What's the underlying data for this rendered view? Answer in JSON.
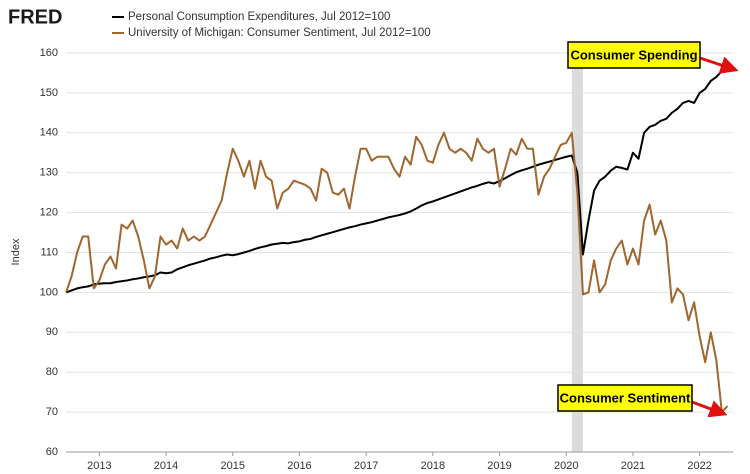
{
  "chart_data": {
    "type": "line",
    "logo": "FRED",
    "ylabel": "Index",
    "xlim": [
      2012.5,
      2022.5
    ],
    "xticks": [
      2013,
      2014,
      2015,
      2016,
      2017,
      2018,
      2019,
      2020,
      2021,
      2022
    ],
    "ylim": [
      60,
      160
    ],
    "yticks": [
      60,
      70,
      80,
      90,
      100,
      110,
      120,
      130,
      140,
      150,
      160
    ],
    "grid": true,
    "recessions": [
      {
        "start": 2020.083,
        "end": 2020.25
      }
    ],
    "annotations": [
      "Consumer Spending",
      "Consumer Sentiment"
    ],
    "x": [
      2012.5,
      2012.583,
      2012.667,
      2012.75,
      2012.833,
      2012.917,
      2013,
      2013.083,
      2013.167,
      2013.25,
      2013.333,
      2013.417,
      2013.5,
      2013.583,
      2013.667,
      2013.75,
      2013.833,
      2013.917,
      2014,
      2014.083,
      2014.167,
      2014.25,
      2014.333,
      2014.417,
      2014.5,
      2014.583,
      2014.667,
      2014.75,
      2014.833,
      2014.917,
      2015,
      2015.083,
      2015.167,
      2015.25,
      2015.333,
      2015.417,
      2015.5,
      2015.583,
      2015.667,
      2015.75,
      2015.833,
      2015.917,
      2016,
      2016.083,
      2016.167,
      2016.25,
      2016.333,
      2016.417,
      2016.5,
      2016.583,
      2016.667,
      2016.75,
      2016.833,
      2016.917,
      2017,
      2017.083,
      2017.167,
      2017.25,
      2017.333,
      2017.417,
      2017.5,
      2017.583,
      2017.667,
      2017.75,
      2017.833,
      2017.917,
      2018,
      2018.083,
      2018.167,
      2018.25,
      2018.333,
      2018.417,
      2018.5,
      2018.583,
      2018.667,
      2018.75,
      2018.833,
      2018.917,
      2019,
      2019.083,
      2019.167,
      2019.25,
      2019.333,
      2019.417,
      2019.5,
      2019.583,
      2019.667,
      2019.75,
      2019.833,
      2019.917,
      2020,
      2020.083,
      2020.167,
      2020.25,
      2020.333,
      2020.417,
      2020.5,
      2020.583,
      2020.667,
      2020.75,
      2020.833,
      2020.917,
      2021,
      2021.083,
      2021.167,
      2021.25,
      2021.333,
      2021.417,
      2021.5,
      2021.583,
      2021.667,
      2021.75,
      2021.833,
      2021.917,
      2022,
      2022.083,
      2022.167,
      2022.25,
      2022.333,
      2022.417
    ],
    "series": [
      {
        "name": "Personal Consumption Expenditures, Jul 2012=100",
        "color": "#000000",
        "values": [
          100,
          100.5,
          101,
          101.3,
          101.5,
          102,
          102.2,
          102.3,
          102.3,
          102.6,
          102.8,
          103,
          103.3,
          103.5,
          103.8,
          104,
          104.3,
          105,
          104.8,
          105,
          105.8,
          106.3,
          106.8,
          107.2,
          107.6,
          108,
          108.5,
          108.8,
          109.2,
          109.5,
          109.3,
          109.6,
          110,
          110.4,
          110.9,
          111.3,
          111.6,
          112,
          112.2,
          112.4,
          112.3,
          112.6,
          112.8,
          113.2,
          113.4,
          113.9,
          114.3,
          114.7,
          115.1,
          115.5,
          115.9,
          116.3,
          116.6,
          117,
          117.3,
          117.6,
          118,
          118.4,
          118.8,
          119.1,
          119.4,
          119.8,
          120.3,
          121,
          121.8,
          122.4,
          122.8,
          123.3,
          123.8,
          124.3,
          124.8,
          125.3,
          125.8,
          126.3,
          126.7,
          127.2,
          127.6,
          127.3,
          127.9,
          128.6,
          129.4,
          130.1,
          130.6,
          131,
          131.5,
          132,
          132.4,
          132.8,
          133.2,
          133.6,
          134,
          134.3,
          130,
          109.5,
          118,
          125.5,
          128,
          129,
          130.5,
          131.5,
          131.2,
          130.8,
          135,
          133.5,
          140,
          141.5,
          142,
          143,
          143.5,
          145,
          146,
          147.5,
          148,
          147.5,
          150,
          151,
          153,
          154,
          155.5,
          156
        ]
      },
      {
        "name": "University of Michigan: Consumer Sentiment, Jul 2012=100",
        "color": "#a0662f",
        "values": [
          100,
          104,
          110,
          114,
          114,
          101,
          103,
          107,
          109,
          106,
          117,
          116,
          118,
          114,
          108,
          101,
          104,
          114,
          112,
          113,
          111,
          116,
          113,
          114,
          113,
          114,
          117,
          120,
          123,
          130,
          136,
          133,
          129,
          133,
          126,
          133,
          129,
          128,
          121,
          125,
          126,
          128,
          127.5,
          127,
          126,
          123,
          131,
          130,
          125,
          124.5,
          126,
          121,
          129,
          136,
          136,
          133,
          134,
          134,
          134,
          131,
          129,
          134,
          132,
          139,
          137,
          133,
          132.5,
          137,
          140,
          136,
          135,
          136,
          135,
          133,
          138.5,
          136,
          135,
          136,
          126.5,
          131,
          136,
          134.5,
          138.5,
          136,
          136,
          124.5,
          129,
          131,
          134,
          137,
          137.5,
          140,
          125,
          99.5,
          100,
          108,
          100,
          102,
          108,
          111,
          113,
          107,
          111,
          107,
          118,
          122,
          114.5,
          118,
          113,
          97.5,
          101,
          99.5,
          93,
          97.5,
          89,
          82.5,
          90,
          83,
          70,
          71.5
        ]
      }
    ]
  }
}
